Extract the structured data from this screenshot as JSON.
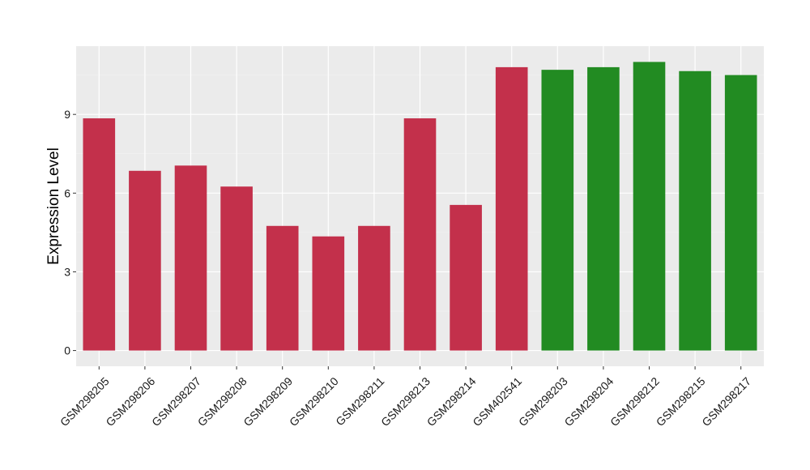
{
  "chart_data": {
    "type": "bar",
    "xlabel": "",
    "ylabel": "Expression Level",
    "ylim": [
      -0.6,
      11.6
    ],
    "yticks": [
      0,
      3,
      6,
      9
    ],
    "grid": true,
    "legend": "none",
    "colors": {
      "panel": "#ebebeb",
      "grid_major": "#ffffff",
      "grid_minor": "#f5f5f5",
      "group_1": "#c3304b",
      "group_2": "#228b22"
    },
    "categories": [
      "GSM298205",
      "GSM298206",
      "GSM298207",
      "GSM298208",
      "GSM298209",
      "GSM298210",
      "GSM298211",
      "GSM298213",
      "GSM298214",
      "GSM402541",
      "GSM298203",
      "GSM298204",
      "GSM298212",
      "GSM298215",
      "GSM298217"
    ],
    "values": [
      8.85,
      6.85,
      7.05,
      6.25,
      4.75,
      4.35,
      4.75,
      8.85,
      5.55,
      10.8,
      10.7,
      10.8,
      11.0,
      10.65,
      10.5
    ],
    "bar_colors": [
      "#c3304b",
      "#c3304b",
      "#c3304b",
      "#c3304b",
      "#c3304b",
      "#c3304b",
      "#c3304b",
      "#c3304b",
      "#c3304b",
      "#c3304b",
      "#228b22",
      "#228b22",
      "#228b22",
      "#228b22",
      "#228b22"
    ]
  }
}
